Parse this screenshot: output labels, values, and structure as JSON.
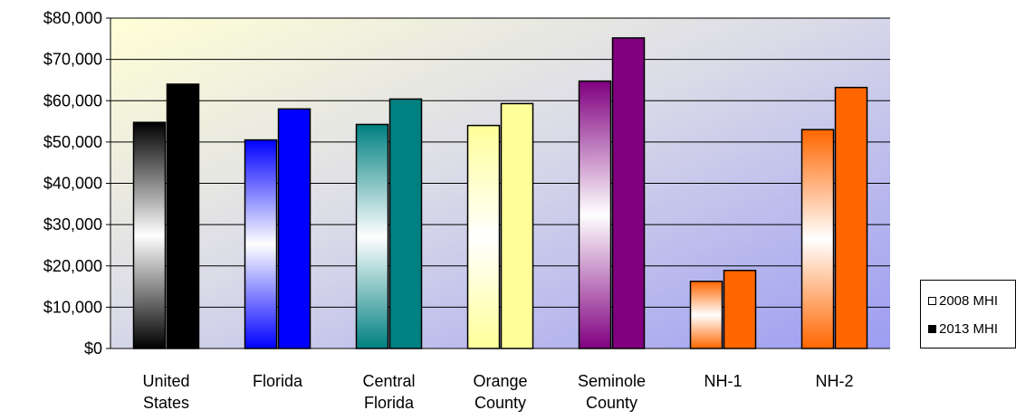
{
  "chart_data": {
    "type": "bar",
    "categories": [
      [
        "United",
        "States"
      ],
      [
        "Florida"
      ],
      [
        "Central",
        "Florida"
      ],
      [
        "Orange",
        "County"
      ],
      [
        "Seminole",
        "County"
      ],
      [
        "NH-1"
      ],
      [
        "NH-2"
      ]
    ],
    "series": [
      {
        "name": "2008 MHI",
        "values": [
          54750,
          50500,
          54250,
          54000,
          64750,
          16250,
          53000
        ]
      },
      {
        "name": "2013 MHI",
        "values": [
          64000,
          58000,
          60400,
          59300,
          75200,
          18900,
          63200
        ]
      }
    ],
    "bar_colors": [
      "#000000",
      "#0000ff",
      "#008080",
      "#ffff99",
      "#800080",
      "#ff6600",
      "#ff6600"
    ],
    "ylim": [
      0,
      80000
    ],
    "yticks": [
      0,
      10000,
      20000,
      30000,
      40000,
      50000,
      60000,
      70000,
      80000
    ],
    "ytick_labels": [
      "$0",
      "$10,000",
      "$20,000",
      "$30,000",
      "$40,000",
      "$50,000",
      "$60,000",
      "$70,000",
      "$80,000"
    ],
    "grid": true,
    "legend_position": "right",
    "legend_swatches": [
      "#ffffff",
      "#000000"
    ]
  }
}
